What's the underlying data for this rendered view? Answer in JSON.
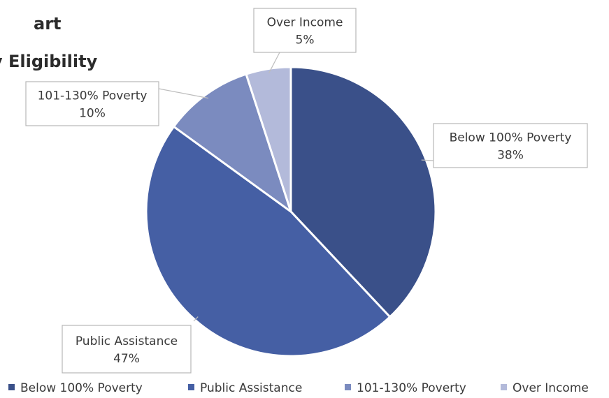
{
  "chart_data": {
    "type": "pie",
    "title_lines": [
      "art",
      "y Eligibility"
    ],
    "slices": [
      {
        "label": "Below 100% Poverty",
        "value": 38,
        "data_label": "38%",
        "color": "#3a5089"
      },
      {
        "label": "Public Assistance",
        "value": 47,
        "data_label": "47%",
        "color": "#455fa4"
      },
      {
        "label": "101-130% Poverty",
        "value": 10,
        "data_label": "10%",
        "color": "#7b8bbf"
      },
      {
        "label": "Over Income",
        "value": 5,
        "data_label": "5%",
        "color": "#b3bada"
      }
    ],
    "start_angle": "12 o'clock",
    "direction": "clockwise",
    "legend_position": "bottom",
    "data_label_style": "callout"
  }
}
